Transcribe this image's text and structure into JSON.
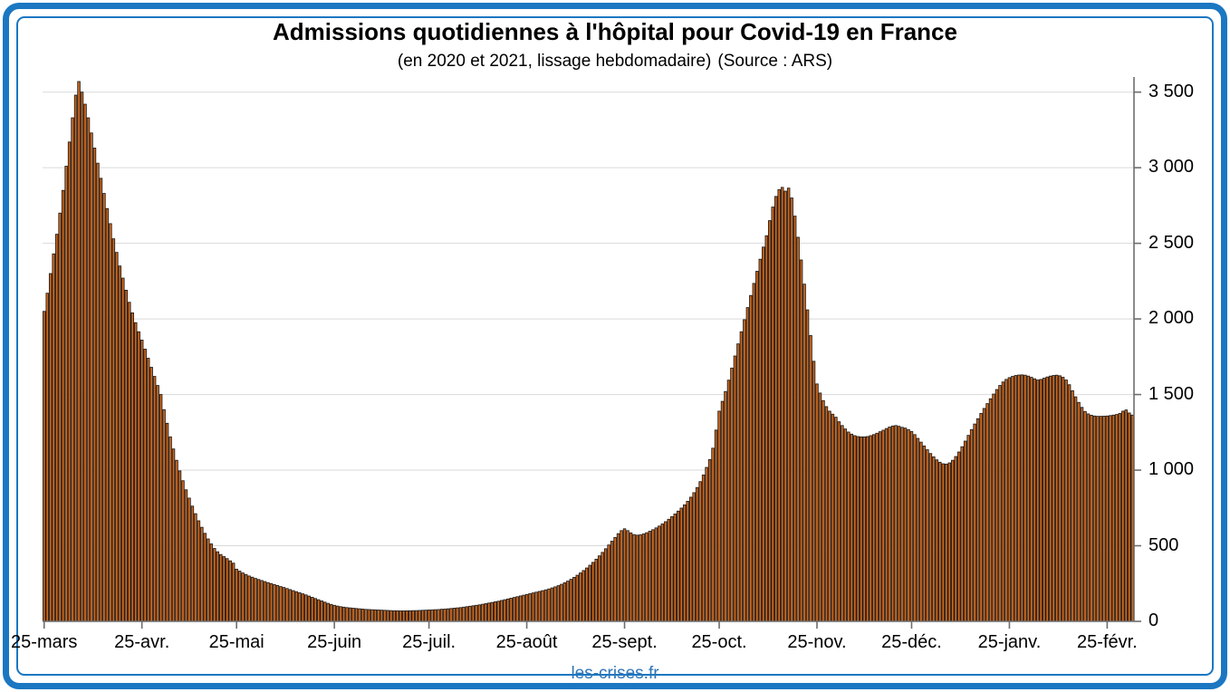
{
  "page": {
    "footer": "les-crises.fr",
    "border_color": "#1b77c2",
    "footer_color": "#2e75b6"
  },
  "chart_data": {
    "type": "bar",
    "title": "Admissions quotidiennes à l'hôpital pour Covid-19 en France",
    "subtitle": "(en 2020 et 2021, lissage hebdomadaire)",
    "source_label": "(Source : ARS)",
    "series_name": "Admissions quotidiennes à l'hôpital (lissage hebdomadaire)",
    "start_date": "2020-03-25",
    "end_date": "2021-03-05",
    "x_tick_labels": [
      "25-mars",
      "25-avr.",
      "25-mai",
      "25-juin",
      "25-juil.",
      "25-août",
      "25-sept.",
      "25-oct.",
      "25-nov.",
      "25-déc.",
      "25-janv.",
      "25-févr."
    ],
    "x_tick_day_indices": [
      0,
      31,
      61,
      92,
      122,
      153,
      184,
      214,
      245,
      275,
      306,
      337
    ],
    "y_ticks": [
      0,
      500,
      1000,
      1500,
      2000,
      2500,
      3000,
      3500
    ],
    "y_tick_labels": [
      "0",
      "500",
      "1 000",
      "1 500",
      "2 000",
      "2 500",
      "3 000",
      "3 500"
    ],
    "ylim": [
      0,
      3600
    ],
    "grid": true,
    "legend": "none",
    "bar_fill": "#ce671c",
    "bar_stroke": "#1a1a1a",
    "gridline_color": "#d9d9d9",
    "axis_color": "#6e6e6e",
    "values": [
      2050,
      2170,
      2300,
      2430,
      2560,
      2700,
      2850,
      3010,
      3170,
      3330,
      3480,
      3570,
      3500,
      3420,
      3330,
      3230,
      3130,
      3030,
      2930,
      2830,
      2730,
      2630,
      2530,
      2440,
      2350,
      2270,
      2190,
      2110,
      2040,
      1975,
      1915,
      1860,
      1800,
      1740,
      1680,
      1620,
      1560,
      1500,
      1400,
      1310,
      1220,
      1140,
      1065,
      995,
      930,
      870,
      815,
      762,
      712,
      665,
      622,
      582,
      545,
      512,
      482,
      460,
      442,
      428,
      415,
      400,
      385,
      345,
      332,
      320,
      310,
      300,
      292,
      284,
      277,
      270,
      263,
      256,
      250,
      243,
      237,
      230,
      224,
      217,
      210,
      203,
      196,
      189,
      182,
      175,
      167,
      159,
      151,
      143,
      135,
      127,
      119,
      112,
      106,
      101,
      97,
      94,
      91,
      89,
      87,
      85,
      83,
      81,
      79,
      78,
      77,
      76,
      75,
      74,
      73,
      72,
      71,
      70,
      70,
      69,
      69,
      70,
      70,
      71,
      71,
      72,
      73,
      74,
      75,
      76,
      77,
      78,
      80,
      81,
      83,
      85,
      87,
      89,
      91,
      94,
      97,
      100,
      103,
      106,
      109,
      113,
      117,
      121,
      125,
      129,
      133,
      138,
      143,
      148,
      153,
      158,
      163,
      168,
      173,
      178,
      183,
      188,
      193,
      198,
      203,
      208,
      214,
      221,
      228,
      236,
      245,
      255,
      266,
      278,
      291,
      305,
      320,
      336,
      353,
      371,
      390,
      411,
      433,
      456,
      480,
      505,
      530,
      555,
      580,
      600,
      612,
      600,
      585,
      574,
      570,
      572,
      578,
      586,
      596,
      606,
      618,
      630,
      644,
      659,
      675,
      692,
      710,
      729,
      749,
      770,
      794,
      821,
      851,
      885,
      924,
      968,
      1018,
      1070,
      1145,
      1265,
      1390,
      1455,
      1520,
      1595,
      1675,
      1755,
      1835,
      1915,
      1995,
      2075,
      2155,
      2235,
      2315,
      2395,
      2475,
      2550,
      2650,
      2740,
      2810,
      2855,
      2870,
      2845,
      2865,
      2800,
      2680,
      2540,
      2390,
      2230,
      2060,
      1890,
      1720,
      1570,
      1510,
      1460,
      1420,
      1390,
      1370,
      1350,
      1320,
      1295,
      1272,
      1252,
      1238,
      1228,
      1222,
      1220,
      1220,
      1222,
      1228,
      1235,
      1244,
      1254,
      1264,
      1275,
      1285,
      1292,
      1295,
      1290,
      1283,
      1278,
      1268,
      1255,
      1235,
      1210,
      1185,
      1160,
      1135,
      1110,
      1088,
      1068,
      1052,
      1042,
      1040,
      1048,
      1065,
      1090,
      1120,
      1155,
      1192,
      1230,
      1268,
      1305,
      1340,
      1375,
      1408,
      1440,
      1472,
      1503,
      1533,
      1560,
      1583,
      1600,
      1612,
      1620,
      1626,
      1629,
      1630,
      1628,
      1622,
      1614,
      1604,
      1596,
      1600,
      1608,
      1616,
      1622,
      1626,
      1628,
      1624,
      1614,
      1596,
      1565,
      1525,
      1485,
      1448,
      1415,
      1388,
      1372,
      1363,
      1358,
      1356,
      1356,
      1357,
      1358,
      1361,
      1364,
      1368,
      1375,
      1390,
      1398,
      1378,
      1364
    ]
  }
}
